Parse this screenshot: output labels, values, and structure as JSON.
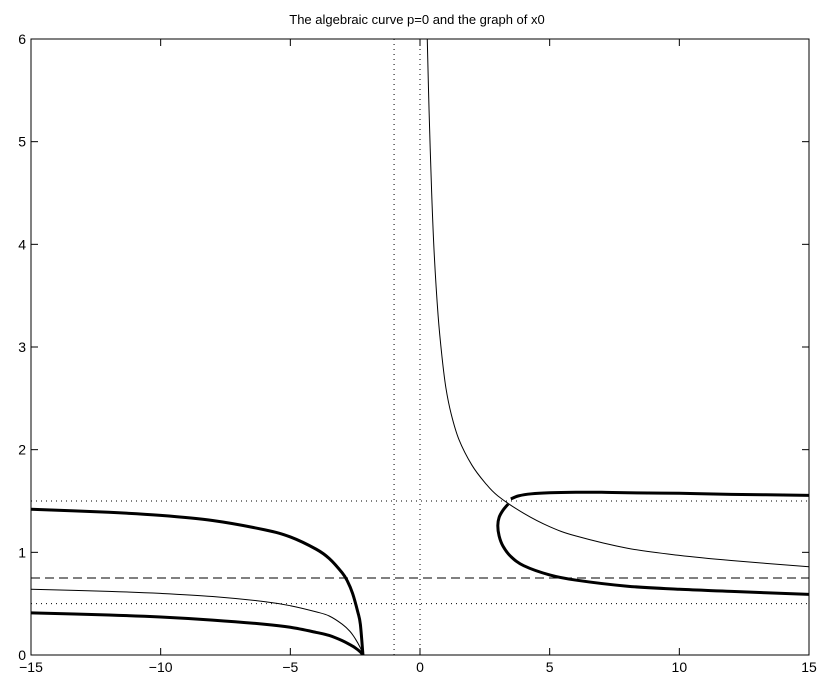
{
  "chart_data": {
    "type": "line",
    "title": "The algebraic curve p=0 and the graph of x0",
    "xlabel": "",
    "ylabel": "",
    "xlim": [
      -15,
      15
    ],
    "ylim": [
      0,
      6
    ],
    "x_ticks": [
      -15,
      -10,
      -5,
      0,
      5,
      10,
      15
    ],
    "x_tick_labels": [
      "−15",
      "−10",
      "−5",
      "0",
      "5",
      "10",
      "15"
    ],
    "y_ticks": [
      0,
      1,
      2,
      3,
      4,
      5,
      6
    ],
    "y_tick_labels": [
      "0",
      "1",
      "2",
      "3",
      "4",
      "5",
      "6"
    ],
    "grid": false,
    "line_color": "#000000",
    "reference_lines": [
      {
        "orientation": "horizontal",
        "value": 0.75,
        "style": "dashed"
      },
      {
        "orientation": "horizontal",
        "value": 1.5,
        "style": "dotted"
      },
      {
        "orientation": "horizontal",
        "value": 0.5,
        "style": "dotted"
      },
      {
        "orientation": "vertical",
        "value": -1,
        "style": "dotted"
      },
      {
        "orientation": "vertical",
        "value": 0,
        "style": "dotted"
      }
    ],
    "series": [
      {
        "style": "thick",
        "x": [
          -15,
          -12,
          -10,
          -8,
          -6,
          -5,
          -4,
          -3.5,
          -3,
          -2.8,
          -2.6,
          -2.4,
          -2.3,
          -2.2
        ],
        "y": [
          1.42,
          1.39,
          1.36,
          1.31,
          1.22,
          1.15,
          1.03,
          0.94,
          0.8,
          0.72,
          0.6,
          0.42,
          0.3,
          0.0
        ]
      },
      {
        "style": "thick",
        "x": [
          -15,
          -12,
          -10,
          -8,
          -6,
          -5,
          -4,
          -3.5,
          -3,
          -2.7,
          -2.5,
          -2.3,
          -2.2
        ],
        "y": [
          0.41,
          0.39,
          0.37,
          0.34,
          0.3,
          0.27,
          0.22,
          0.19,
          0.14,
          0.1,
          0.07,
          0.03,
          0.0
        ]
      },
      {
        "style": "thin",
        "x": [
          -15,
          -12,
          -10,
          -8,
          -6,
          -5,
          -4,
          -3.5,
          -3,
          -2.7,
          -2.5,
          -2.3,
          -2.2
        ],
        "y": [
          0.64,
          0.62,
          0.6,
          0.57,
          0.52,
          0.48,
          0.42,
          0.38,
          0.3,
          0.23,
          0.16,
          0.07,
          0.0
        ]
      },
      {
        "style": "thin",
        "x": [
          0.28,
          0.35,
          0.45,
          0.55,
          0.7,
          0.85,
          1.0,
          1.2,
          1.5,
          2.0,
          2.5,
          3.0,
          4.0,
          5.0,
          6.0,
          8.0,
          10.0,
          12.0,
          15.0
        ],
        "y": [
          6.0,
          5.3,
          4.5,
          3.9,
          3.3,
          2.9,
          2.6,
          2.35,
          2.1,
          1.85,
          1.68,
          1.55,
          1.38,
          1.25,
          1.16,
          1.04,
          0.97,
          0.92,
          0.86
        ]
      },
      {
        "style": "thick",
        "x": [
          3.4,
          3.2,
          3.05,
          3.0,
          3.05,
          3.2,
          3.5,
          4.0,
          5.0,
          6.0,
          8.0,
          10.0,
          12.0,
          15.0
        ],
        "y": [
          1.47,
          1.41,
          1.34,
          1.26,
          1.16,
          1.06,
          0.96,
          0.87,
          0.78,
          0.73,
          0.67,
          0.64,
          0.62,
          0.59
        ]
      },
      {
        "style": "thick",
        "x": [
          3.5,
          3.8,
          4.3,
          5.0,
          6.0,
          7.0,
          8.0,
          10.0,
          12.0,
          15.0
        ],
        "y": [
          1.52,
          1.55,
          1.57,
          1.58,
          1.585,
          1.585,
          1.58,
          1.575,
          1.565,
          1.555
        ]
      }
    ]
  }
}
